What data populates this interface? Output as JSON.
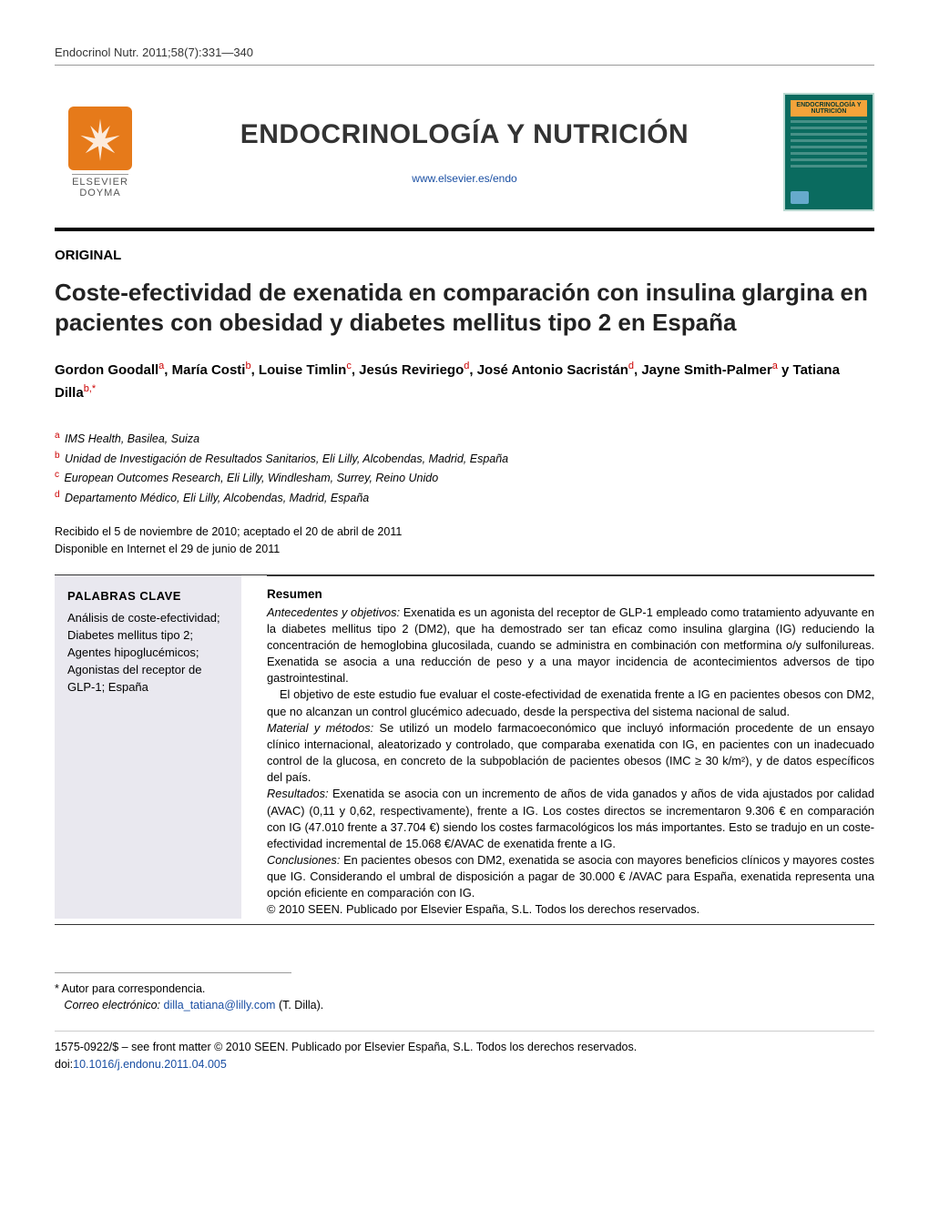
{
  "citation": "Endocrinol Nutr. 2011;58(7):331—340",
  "journal": {
    "title": "ENDOCRINOLOGÍA Y NUTRICIÓN",
    "url": "www.elsevier.es/endo",
    "publisher_top": "ELSEVIER",
    "publisher_bottom": "DOYMA",
    "cover_label": "ENDOCRINOLOGÍA Y NUTRICIÓN"
  },
  "section_label": "ORIGINAL",
  "article_title": "Coste-efectividad de exenatida en comparación con insulina glargina en pacientes con obesidad y diabetes mellitus tipo 2 en España",
  "authors_html": "Gordon Goodall<sup>a</sup>, María Costi<sup>b</sup>, Louise Timlin<sup>c</sup>, Jesús Reviriego<sup>d</sup>, José Antonio Sacristán<sup>d</sup>, Jayne Smith-Palmer<sup>a</sup> y Tatiana Dilla<sup>b,*</sup>",
  "affiliations": [
    {
      "sup": "a",
      "text": "IMS Health, Basilea, Suiza"
    },
    {
      "sup": "b",
      "text": "Unidad de Investigación de Resultados Sanitarios, Eli Lilly, Alcobendas, Madrid, España"
    },
    {
      "sup": "c",
      "text": "European Outcomes Research, Eli Lilly, Windlesham, Surrey, Reino Unido"
    },
    {
      "sup": "d",
      "text": "Departamento Médico, Eli Lilly, Alcobendas, Madrid, España"
    }
  ],
  "dates": {
    "received_accepted": "Recibido el 5 de noviembre de 2010; aceptado el 20 de abril de 2011",
    "online": "Disponible en Internet el 29 de junio de 2011"
  },
  "keywords": {
    "heading": "PALABRAS CLAVE",
    "body": "Análisis de coste-efectividad; Diabetes mellitus tipo 2; Agentes hipoglucémicos; Agonistas del receptor de GLP-1; España"
  },
  "abstract": {
    "heading": "Resumen",
    "p1_lead": "Antecedentes y objetivos:",
    "p1": " Exenatida es un agonista del receptor de GLP-1 empleado como tratamiento adyuvante en la diabetes mellitus tipo 2 (DM2), que ha demostrado ser tan eficaz como insulina glargina (IG) reduciendo la concentración de hemoglobina glucosilada, cuando se administra en combinación con metformina o/y sulfonilureas. Exenatida se asocia a una reducción de peso y a una mayor incidencia de acontecimientos adversos de tipo gastrointestinal.",
    "p2": "El objetivo de este estudio fue evaluar el coste-efectividad de exenatida frente a IG en pacientes obesos con DM2, que no alcanzan un control glucémico adecuado, desde la perspectiva del sistema nacional de salud.",
    "p3_lead": "Material y métodos:",
    "p3": " Se utilizó un modelo farmacoeconómico que incluyó información procedente de un ensayo clínico internacional, aleatorizado y controlado, que comparaba exenatida con IG, en pacientes con un inadecuado control de la glucosa, en concreto de la subpoblación de pacientes obesos (IMC ≥ 30 k/m²), y de datos específicos del país.",
    "p4_lead": "Resultados:",
    "p4": " Exenatida se asocia con un incremento de años de vida ganados y años de vida ajustados por calidad (AVAC) (0,11 y 0,62, respectivamente), frente a IG. Los costes directos se incrementaron 9.306 € en comparación con IG (47.010 frente a 37.704 €) siendo los costes farmacológicos los más importantes. Esto se tradujo en un coste-efectividad incremental de 15.068 €/AVAC de exenatida frente a IG.",
    "p5_lead": "Conclusiones:",
    "p5": " En pacientes obesos con DM2, exenatida se asocia con mayores beneficios clínicos y mayores costes que IG. Considerando el umbral de disposición a pagar de 30.000 € /AVAC para España, exenatida representa una opción eficiente en comparación con IG.",
    "copyright": "© 2010 SEEN. Publicado por Elsevier España, S.L. Todos los derechos reservados."
  },
  "correspondence": {
    "star": "* Autor para correspondencia.",
    "email_label": "Correo electrónico:",
    "email": "dilla_tatiana@lilly.com",
    "email_person": "(T. Dilla)."
  },
  "bottom": {
    "front_matter": "1575-0922/$ – see front matter © 2010 SEEN. Publicado por Elsevier España, S.L. Todos los derechos reservados.",
    "doi_label": "doi:",
    "doi": "10.1016/j.endonu.2011.04.005"
  }
}
